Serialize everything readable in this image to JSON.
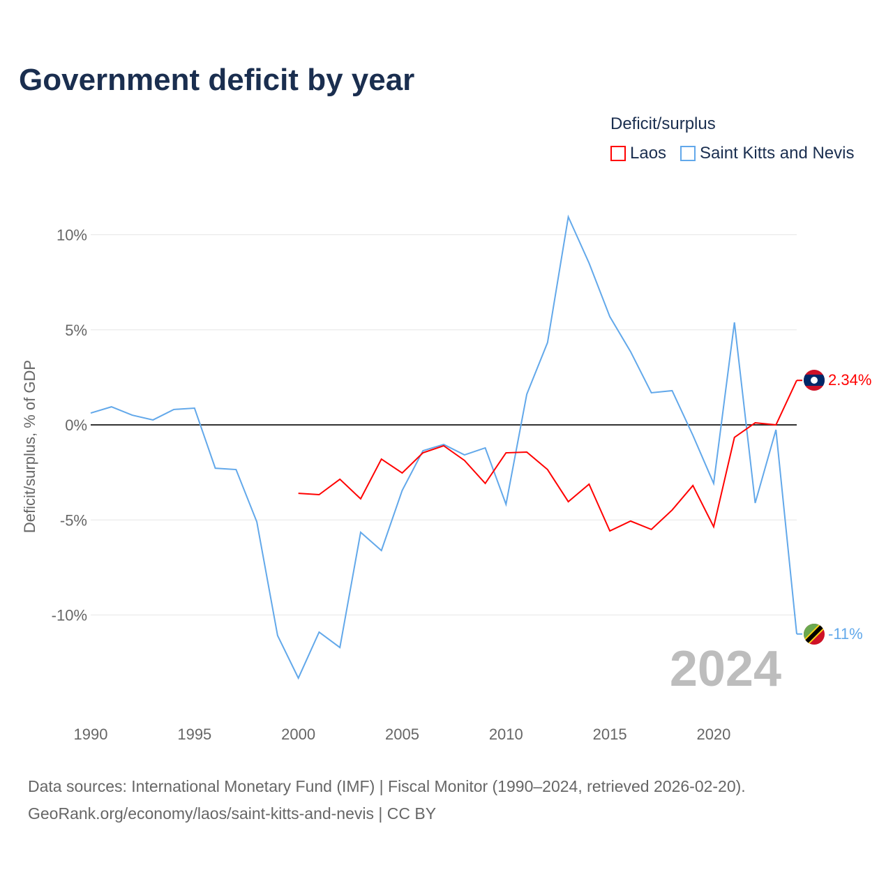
{
  "title": "Government deficit by year",
  "legend": {
    "title": "Deficit/surplus",
    "items": [
      "Laos",
      "Saint Kitts and Nevis"
    ]
  },
  "year_label": "2024",
  "end_labels": {
    "laos": "2.34%",
    "skn": "-11%"
  },
  "source_lines": [
    "Data sources: International Monetary Fund (IMF) | Fiscal Monitor (1990–2024, retrieved 2026-02-20).",
    "GeoRank.org/economy/laos/saint-kitts-and-nevis | CC BY"
  ],
  "chart_data": {
    "type": "line",
    "title": "Government deficit by year",
    "ylabel": "Deficit/surplus, % of GDP",
    "xlabel": "",
    "xlim": [
      1990,
      2024
    ],
    "ylim": [
      -14.5,
      11
    ],
    "x_ticks": [
      1990,
      1995,
      2000,
      2005,
      2010,
      2015,
      2020
    ],
    "x_tick_labels": [
      "1990",
      "1995",
      "2000",
      "2005",
      "2010",
      "2015",
      "2020"
    ],
    "y_ticks": [
      10,
      5,
      0,
      -5,
      -10
    ],
    "y_tick_labels": [
      "10%",
      "5%",
      "0%",
      "-5%",
      "-10%"
    ],
    "legend_position": "top-right",
    "series": [
      {
        "name": "Laos",
        "color": "#ff0000",
        "x": [
          2000,
          2001,
          2002,
          2003,
          2004,
          2005,
          2006,
          2007,
          2008,
          2009,
          2010,
          2011,
          2012,
          2013,
          2014,
          2015,
          2016,
          2017,
          2018,
          2019,
          2020,
          2021,
          2022,
          2023,
          2024
        ],
        "values": [
          -3.6,
          -3.67,
          -2.86,
          -3.89,
          -1.8,
          -2.53,
          -1.47,
          -1.1,
          -1.87,
          -3.08,
          -1.47,
          -1.43,
          -2.35,
          -4.04,
          -3.12,
          -5.58,
          -5.06,
          -5.5,
          -4.48,
          -3.19,
          -5.36,
          -0.66,
          0.11,
          0.0,
          2.34
        ]
      },
      {
        "name": "Saint Kitts and Nevis",
        "color": "#62a8ea",
        "x": [
          1990,
          1991,
          1992,
          1993,
          1994,
          1995,
          1996,
          1997,
          1998,
          1999,
          2000,
          2001,
          2002,
          2003,
          2004,
          2005,
          2006,
          2007,
          2008,
          2009,
          2010,
          2011,
          2012,
          2013,
          2014,
          2015,
          2016,
          2017,
          2018,
          2019,
          2020,
          2021,
          2022,
          2023,
          2024
        ],
        "values": [
          0.62,
          0.95,
          0.51,
          0.26,
          0.81,
          0.88,
          -2.28,
          -2.35,
          -5.1,
          -11.08,
          -13.32,
          -10.9,
          -11.71,
          -5.65,
          -6.61,
          -3.45,
          -1.36,
          -1.03,
          -1.58,
          -1.21,
          -4.18,
          1.61,
          4.33,
          10.94,
          8.51,
          5.69,
          3.85,
          1.69,
          1.8,
          -0.55,
          -3.08,
          5.39,
          -4.11,
          -0.26,
          -11.0
        ]
      }
    ]
  }
}
